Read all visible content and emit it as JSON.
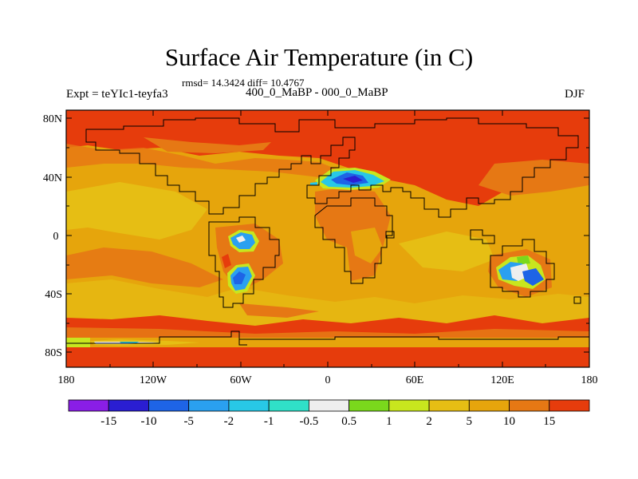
{
  "title": "Surface Air Temperature (in C)",
  "subtitle": "rmsd= 14.3424 diff= 10.4767",
  "left_label": "Expt = teYIc1-teyfa3",
  "center_label": "400_0_MaBP - 000_0_MaBP",
  "right_label": "DJF",
  "lat_ticks": [
    "80N",
    "40N",
    "0",
    "40S",
    "80S"
  ],
  "lon_ticks": [
    "180",
    "120W",
    "60W",
    "0",
    "60E",
    "120E",
    "180"
  ],
  "colorbar": {
    "colors": [
      "#8a1ee6",
      "#2a1ed2",
      "#1e64e6",
      "#2aa0f0",
      "#28c8e6",
      "#30e0c8",
      "#eeeeee",
      "#7ad81c",
      "#c8e61e",
      "#e6be14",
      "#e6a50c",
      "#e67814",
      "#e63c0c"
    ],
    "labels": [
      "-15",
      "-10",
      "-5",
      "-2",
      "-1",
      "-0.5",
      "0.5",
      "1",
      "2",
      "5",
      "10",
      "15"
    ]
  }
}
